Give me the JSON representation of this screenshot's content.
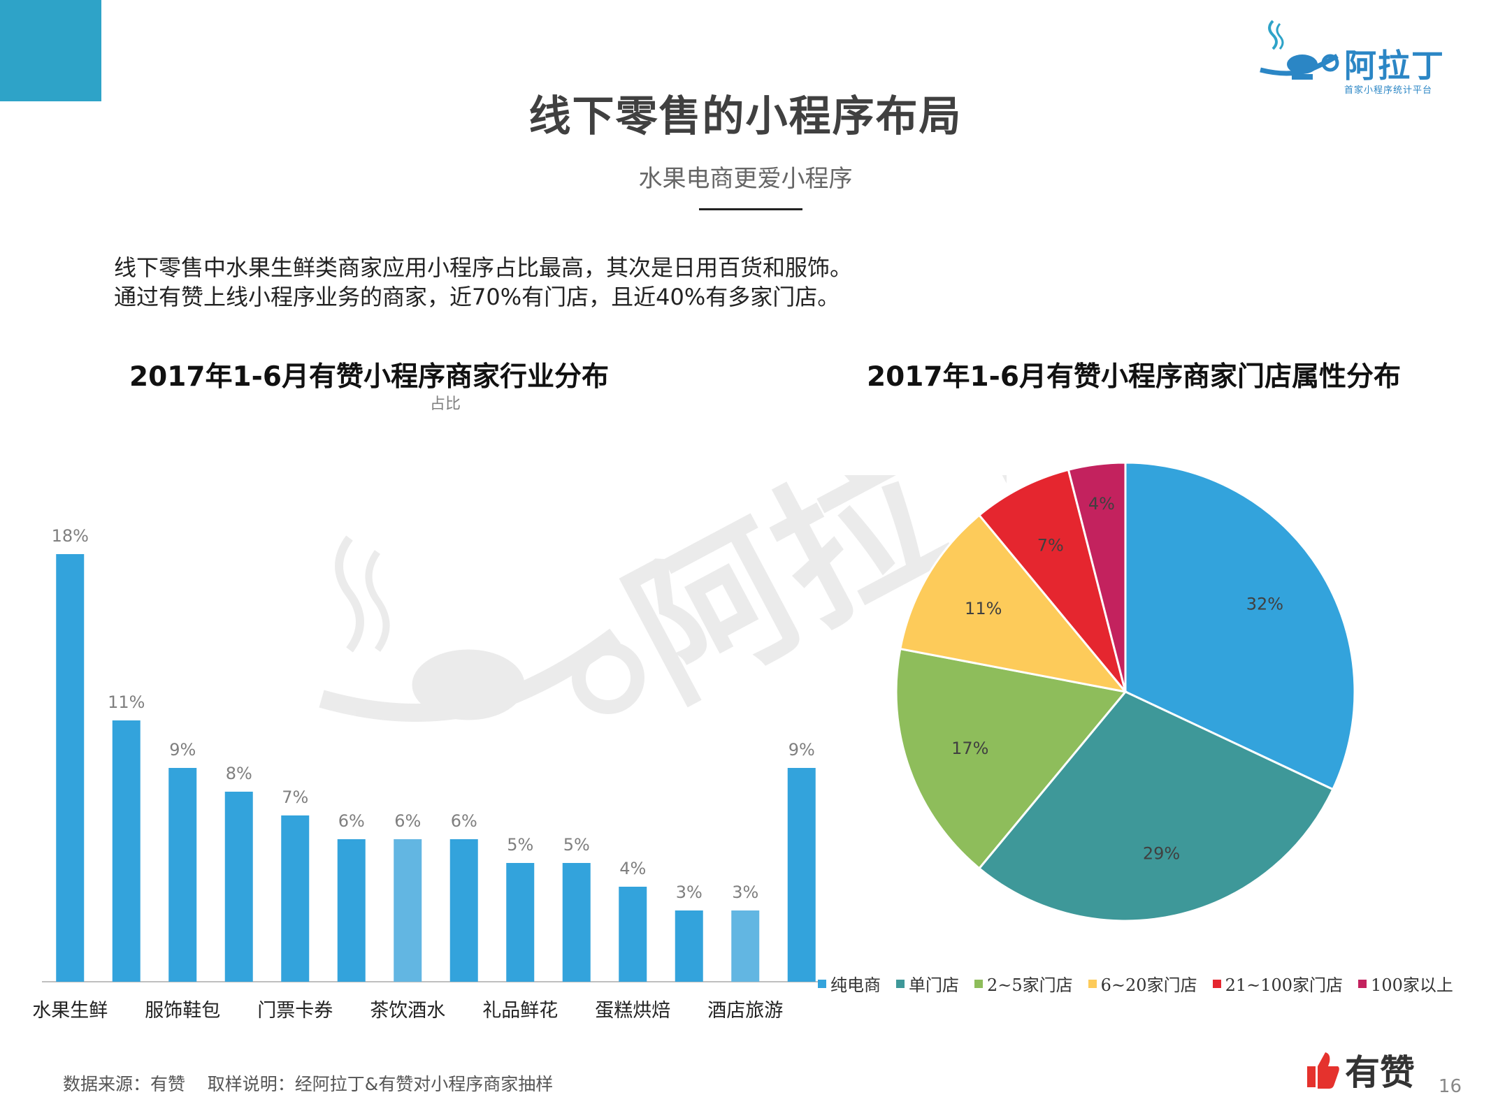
{
  "brand": {
    "logo_text": "阿拉丁",
    "logo_subtitle": "首家小程序统计平台"
  },
  "page": {
    "title": "线下零售的小程序布局",
    "subtitle": "水果电商更爱小程序",
    "intro_line1": "线下零售中水果生鲜类商家应用小程序占比最高，其次是日用百货和服饰。",
    "intro_line2": "通过有赞上线小程序业务的商家，近70%有门店，且近40%有多家门店。",
    "source": "数据来源：有赞    取样说明：经阿拉丁&有赞对小程序商家抽样",
    "footer_brand": "有赞",
    "page_number": "16"
  },
  "colors": {
    "accent": "#2ea3c8",
    "bar": "#33a3dc",
    "bar_light": "#62b6e2",
    "footer_red": "#e5322d"
  },
  "chart_data": [
    {
      "type": "bar",
      "title": "2017年1-6月有赞小程序商家行业分布",
      "subtitle": "占比",
      "categories": [
        "水果生鲜",
        "",
        "服饰鞋包",
        "",
        "门票卡券",
        "",
        "茶饮酒水",
        "",
        "礼品鲜花",
        "",
        "蛋糕烘焙",
        "",
        "酒店旅游",
        ""
      ],
      "values": [
        18,
        11,
        9,
        8,
        7,
        6,
        6,
        6,
        5,
        5,
        4,
        3,
        3,
        9
      ],
      "labels": [
        "18%",
        "11%",
        "9%",
        "8%",
        "7%",
        "6%",
        "6%",
        "6%",
        "5%",
        "5%",
        "4%",
        "3%",
        "3%",
        "9%"
      ],
      "light_bars": [
        6,
        12
      ],
      "ylim": [
        0,
        20
      ],
      "grid": false,
      "legend": "none"
    },
    {
      "type": "pie",
      "title": "2017年1-6月有赞小程序商家门店属性分布",
      "slices": [
        {
          "label": "纯电商",
          "value": 32,
          "text": "32%",
          "color": "#33a3dc"
        },
        {
          "label": "单门店",
          "value": 29,
          "text": "29%",
          "color": "#3e9899"
        },
        {
          "label": "2~5家门店",
          "value": 17,
          "text": "17%",
          "color": "#8ebd5b"
        },
        {
          "label": "6~20家门店",
          "value": 11,
          "text": "11%",
          "color": "#fdcb5a"
        },
        {
          "label": "21~100家门店",
          "value": 7,
          "text": "7%",
          "color": "#e5262f"
        },
        {
          "label": "100家以上",
          "value": 4,
          "text": "4%",
          "color": "#c3225e"
        }
      ],
      "legend": "bottom"
    }
  ]
}
